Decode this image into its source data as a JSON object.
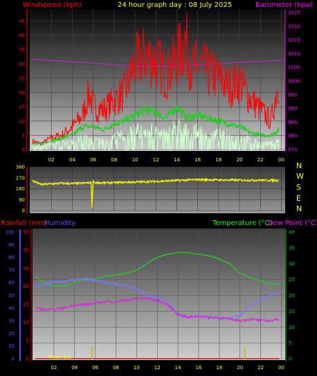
{
  "chart_data": [
    {
      "type": "line",
      "title": "24 hour graph day : 08 July 2025",
      "ylabel_left": "Windspeed (kph)",
      "ylabel_right": "Barometer (hpa)",
      "x_ticks": [
        "02",
        "04",
        "06",
        "08",
        "10",
        "12",
        "14",
        "16",
        "18",
        "20",
        "22",
        "00"
      ],
      "y_left_ticks": [
        "0",
        "5",
        "10",
        "15",
        "20",
        "25",
        "30",
        "35",
        "40",
        "45"
      ],
      "y_right_ticks": [
        "975",
        "980",
        "985",
        "990",
        "995",
        "1000",
        "1005",
        "1010",
        "1015",
        "1020",
        "1025"
      ],
      "ylim_left": [
        0,
        49
      ],
      "ylim_right": [
        975,
        1026
      ],
      "series": [
        {
          "role": "barometer",
          "color": "#cc22cc",
          "axis": "right",
          "x": [
            0.2,
            2,
            4,
            6,
            8,
            10,
            12,
            14,
            16,
            18,
            20,
            22,
            24
          ],
          "values": [
            1008,
            1007.5,
            1007,
            1006.5,
            1006,
            1005.5,
            1005.5,
            1005.5,
            1006,
            1006.3,
            1006.8,
            1007.2,
            1007.5
          ]
        },
        {
          "role": "wind_gust",
          "color": "#ff0000",
          "axis": "left",
          "x": [
            0.2,
            1,
            2,
            3,
            4,
            5,
            5.6,
            6,
            7,
            8,
            9,
            10,
            11,
            12,
            13,
            14,
            14.8,
            15.5,
            16,
            17,
            18,
            19,
            20,
            21,
            22,
            23,
            23.8
          ],
          "values": [
            3,
            2,
            4,
            5,
            8,
            12,
            20,
            15,
            14,
            17,
            20,
            30,
            33,
            31,
            26,
            32,
            38,
            28,
            30,
            27,
            25,
            22,
            24,
            18,
            14,
            10,
            25
          ]
        },
        {
          "role": "wind_avg",
          "color": "#22cc22",
          "axis": "left",
          "x": [
            0.2,
            1,
            2,
            3,
            4,
            5,
            6,
            7,
            8,
            9,
            10,
            11,
            12,
            13,
            14,
            15,
            16,
            17,
            18,
            19,
            20,
            21,
            22,
            23,
            23.8
          ],
          "values": [
            2,
            2,
            3,
            4,
            5,
            8,
            8,
            7,
            9,
            10,
            12,
            14,
            13,
            11,
            15,
            11,
            12,
            11,
            10,
            9,
            8,
            6,
            5,
            5,
            7
          ]
        },
        {
          "role": "wind_low",
          "color": "#ccffcc",
          "axis": "left",
          "x": [
            0.2,
            1,
            2,
            3,
            4,
            5,
            6,
            7,
            8,
            9,
            10,
            11,
            12,
            13,
            14,
            15,
            16,
            17,
            18,
            19,
            20,
            21,
            22,
            23,
            23.8
          ],
          "values": [
            1,
            1,
            2,
            2,
            3,
            4,
            3,
            3,
            4,
            5,
            6,
            7,
            6,
            5,
            8,
            6,
            6,
            5,
            5,
            4,
            4,
            3,
            2,
            2,
            3
          ]
        }
      ]
    },
    {
      "type": "line",
      "ylabel": "Wind direction",
      "x_ticks": [
        "02",
        "04",
        "06",
        "08",
        "10",
        "12",
        "14",
        "16",
        "18",
        "20",
        "22",
        "00"
      ],
      "y_ticks": [
        "0",
        "90",
        "180",
        "270",
        "360"
      ],
      "compass": [
        "N",
        "W",
        "S",
        "E",
        "N"
      ],
      "ylim": [
        0,
        360
      ],
      "series": [
        {
          "role": "direction",
          "color": "#eeee00",
          "x": [
            0.2,
            1,
            2,
            3,
            4,
            5,
            5.8,
            5.9,
            6,
            6.1,
            7,
            8,
            10,
            12,
            14,
            16,
            18,
            20,
            22,
            23.8
          ],
          "values": [
            245,
            215,
            220,
            225,
            222,
            225,
            230,
            20,
            245,
            230,
            228,
            230,
            235,
            240,
            248,
            255,
            252,
            250,
            250,
            248
          ]
        }
      ]
    },
    {
      "type": "line",
      "ylabel_left_outer": "Rainfall (mm)",
      "ylabel_left_inner": "Humidity",
      "ylabel_right": "Temperature (°C)",
      "ylabel_right2": "Dew Point (°C)",
      "annotation": "Moon Set",
      "x_ticks": [
        "02",
        "04",
        "06",
        "08",
        "10",
        "12",
        "14",
        "16",
        "18",
        "20",
        "22",
        "00"
      ],
      "humidity_ticks": [
        "0",
        "10",
        "20",
        "30",
        "40",
        "50",
        "60",
        "70",
        "80",
        "90",
        "100"
      ],
      "rain_ticks": [
        "0",
        "5",
        "10",
        "15",
        "20",
        "25",
        "30",
        "35"
      ],
      "temp_ticks": [
        "0",
        "5",
        "10",
        "15",
        "20",
        "25",
        "30",
        "35",
        "40"
      ],
      "ylim_humidity": [
        0,
        100
      ],
      "ylim_temp": [
        0,
        40
      ],
      "series": [
        {
          "role": "temperature",
          "color": "#22cc22",
          "axis": "temp",
          "x": [
            0.2,
            1,
            2,
            3,
            4,
            5,
            6,
            7,
            8,
            9,
            10,
            11,
            12,
            13,
            14,
            15,
            16,
            17,
            18,
            19,
            20,
            21,
            22,
            23,
            23.8
          ],
          "values": [
            26,
            24,
            23,
            23,
            24,
            25,
            25,
            26,
            26.5,
            27,
            28,
            30,
            32,
            33,
            33.5,
            33.5,
            33,
            32.5,
            31.5,
            30,
            27,
            25.5,
            24.5,
            23.5,
            23.5
          ]
        },
        {
          "role": "humidity",
          "color": "#7777ff",
          "axis": "humidity",
          "x": [
            0.2,
            1,
            2,
            3,
            4,
            5,
            6,
            7,
            8,
            9,
            10,
            11,
            12,
            13,
            13.5,
            14,
            15,
            16,
            17,
            18,
            19,
            20,
            21,
            22,
            23,
            23.8
          ],
          "values": [
            57,
            59,
            60,
            61,
            62,
            63,
            61,
            60,
            59,
            58,
            55,
            50,
            48,
            45,
            40,
            35,
            33,
            34,
            33,
            32,
            32,
            34,
            42,
            46,
            50,
            52
          ]
        },
        {
          "role": "dew_point",
          "color": "#dd22dd",
          "axis": "temp",
          "x": [
            0.2,
            1,
            2,
            3,
            4,
            5,
            6,
            7,
            8,
            9,
            10,
            11,
            12,
            13,
            14,
            15,
            16,
            17,
            18,
            19,
            20,
            21,
            22,
            23,
            23.8
          ],
          "values": [
            16,
            15.5,
            15.5,
            16,
            17,
            17,
            17.5,
            18,
            18,
            18.5,
            19,
            19,
            18.5,
            17,
            14,
            13,
            13.5,
            13,
            13,
            12.5,
            12,
            12.5,
            12,
            12,
            12.5
          ]
        },
        {
          "role": "rain",
          "color": "#ee0000",
          "axis": "rain",
          "x": [
            0.2,
            23.8
          ],
          "values": [
            0,
            0
          ]
        }
      ]
    }
  ],
  "colors": {
    "windspeed_label": "#ff0000",
    "barometer_label": "#ff00ff",
    "title": "#ffff00",
    "rain_label": "#ff0000",
    "humidity_label": "#5555ff",
    "temperature_label": "#00ff00",
    "dewpoint_label": "#ff00ff",
    "direction_line": "#eeee00",
    "compass_letters": "#ffff00",
    "moon_marker": "#bbbb00"
  }
}
